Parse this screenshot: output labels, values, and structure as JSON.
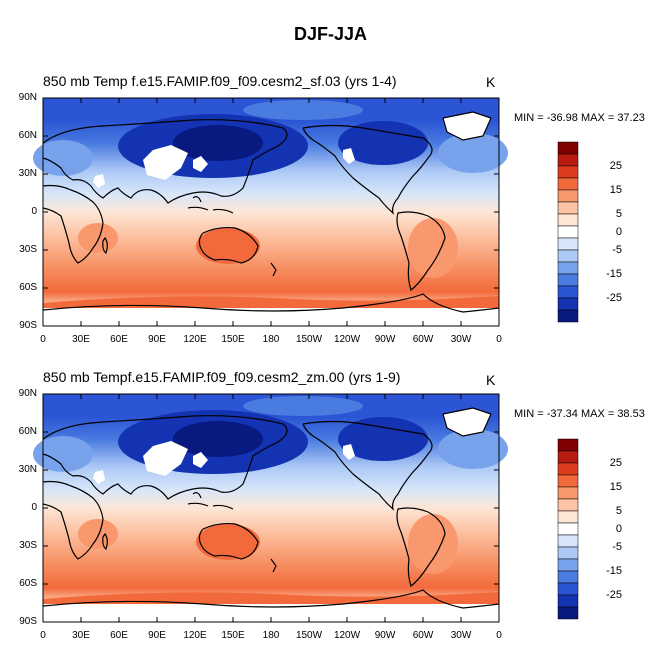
{
  "title": "DJF-JJA",
  "units": "K",
  "lat_ticks": [
    "90N",
    "60N",
    "30N",
    "0",
    "30S",
    "60S",
    "90S"
  ],
  "lon_ticks": [
    "0",
    "30E",
    "60E",
    "90E",
    "120E",
    "150E",
    "180",
    "150W",
    "120W",
    "90W",
    "60W",
    "30W",
    "0"
  ],
  "colorbar": {
    "labels": [
      "25",
      "15",
      "5",
      "0",
      "-5",
      "-15",
      "-25"
    ],
    "colors": [
      "#7f0000",
      "#b81c10",
      "#dd3d1d",
      "#f26a3c",
      "#f8986c",
      "#fcc3a4",
      "#fde6d6",
      "#ffffff",
      "#d7e6fa",
      "#acc9f5",
      "#78a3ec",
      "#4a7be0",
      "#2b55d4",
      "#1433b3",
      "#081a7f"
    ]
  },
  "panels": [
    {
      "title": "850 mb Temp f.e15.FAMIP.f09_f09.cesm2_sf.03 (yrs 1-4)",
      "minmax": "MIN = -36.98 MAX =  37.23"
    },
    {
      "title": "850 mb Tempf.e15.FAMIP.f09_f09.cesm2_zm.00 (yrs 1-9)",
      "minmax": "MIN = -37.34 MAX =  38.53"
    }
  ]
}
